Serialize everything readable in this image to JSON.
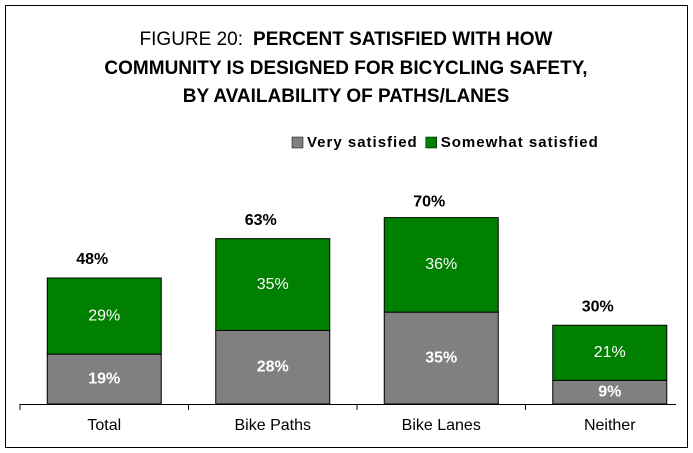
{
  "chart_data": {
    "type": "stacked_bar",
    "title_label": "FIGURE 20:",
    "title_lines": [
      "PERCENT SATISFIED WITH HOW",
      "COMMUNITY IS DESIGNED FOR BICYCLING SAFETY,",
      "BY AVAILABILITY OF PATHS/LANES"
    ],
    "categories": [
      "Total",
      "Bike Paths",
      "Bike Lanes",
      "Neither"
    ],
    "series": [
      {
        "name": "Very satisfied",
        "color": "#808080",
        "values": [
          19,
          28,
          35,
          9
        ],
        "value_labels": [
          "19%",
          "28%",
          "35%",
          "9%"
        ]
      },
      {
        "name": "Somewhat satisfied",
        "color": "#008000",
        "values": [
          29,
          35,
          36,
          21
        ],
        "value_labels": [
          "29%",
          "35%",
          "36%",
          "21%"
        ]
      }
    ],
    "totals": [
      48,
      63,
      70,
      30
    ],
    "total_labels": [
      "48%",
      "63%",
      "70%",
      "30%"
    ]
  }
}
